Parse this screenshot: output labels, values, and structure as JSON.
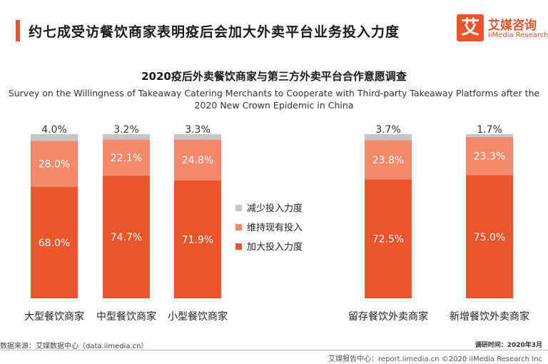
{
  "header": {
    "title": "约七成受访餐饮商家表明疫后会加大外卖平台业务投入力度",
    "logo_mark": "艾",
    "logo_cn": "艾媒咨询",
    "logo_en": "iiMedia Research"
  },
  "chart_data": {
    "type": "bar",
    "stacked": true,
    "title": "2020疫后外卖餐饮商家与第三方外卖平台合作意愿调查",
    "subtitle": "Survey on the Willingness of Takeaway Catering Merchants to Cooperate with Third-party Takeaway Platforms after the 2020 New Crown Epidemic in China",
    "legend_position": "center",
    "groups": [
      {
        "categories": [
          "大型餐饮商家",
          "中型餐饮商家",
          "小型餐饮商家"
        ],
        "series": [
          {
            "name": "加大投入力度",
            "color": "#e9562b",
            "values": [
              68.0,
              74.7,
              71.9
            ]
          },
          {
            "name": "维持现有投入",
            "color": "#f5896b",
            "values": [
              28.0,
              22.1,
              24.8
            ]
          },
          {
            "name": "减少投入力度",
            "color": "#c6c6c6",
            "values": [
              4.0,
              3.2,
              3.3
            ]
          }
        ]
      },
      {
        "categories": [
          "留存餐饮外卖商家",
          "新增餐饮外卖商家"
        ],
        "series": [
          {
            "name": "加大投入力度",
            "color": "#e9562b",
            "values": [
              72.5,
              75.0
            ]
          },
          {
            "name": "维持现有投入",
            "color": "#f5896b",
            "values": [
              23.8,
              23.3
            ]
          },
          {
            "name": "减少投入力度",
            "color": "#c6c6c6",
            "values": [
              3.7,
              1.7
            ]
          }
        ]
      }
    ],
    "legend": [
      {
        "name": "减少投入力度",
        "color": "#c6c6c6"
      },
      {
        "name": "维持现有投入",
        "color": "#f5896b"
      },
      {
        "name": "加大投入力度",
        "color": "#e9562b"
      }
    ],
    "value_suffix": "%",
    "ylim": [
      0,
      100
    ]
  },
  "footer": {
    "source": "数据来源：艾媒数据中心（data.iimedia.cn）",
    "survey_date": "调研时间：2020年3月",
    "bottom": "艾媒报告中心：report.iimedia.cn ©2020  iiMedia Research Inc"
  }
}
